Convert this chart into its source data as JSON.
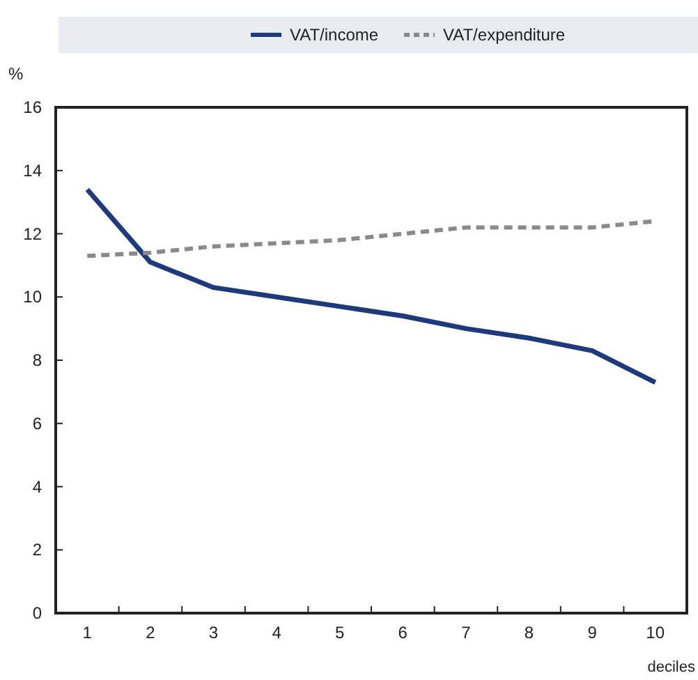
{
  "chart_data": {
    "type": "line",
    "ylabel": "%",
    "xlabel": "deciles",
    "categories": [
      "1",
      "2",
      "3",
      "4",
      "5",
      "6",
      "7",
      "8",
      "9",
      "10"
    ],
    "series": [
      {
        "name": "VAT/income",
        "color": "#1f3a7a",
        "line_style": "solid",
        "values": [
          13.4,
          11.1,
          10.3,
          10.0,
          9.7,
          9.4,
          9.0,
          8.7,
          8.3,
          7.3
        ]
      },
      {
        "name": "VAT/expenditure",
        "color": "#8a8a8a",
        "line_style": "dashed",
        "values": [
          11.3,
          11.4,
          11.6,
          11.7,
          11.8,
          12.0,
          12.2,
          12.2,
          12.2,
          12.4
        ]
      }
    ],
    "ylim": [
      0,
      16
    ],
    "yticks": [
      0,
      2,
      4,
      6,
      8,
      10,
      12,
      14,
      16
    ],
    "legend": "top",
    "grid": false,
    "marker": "none"
  }
}
